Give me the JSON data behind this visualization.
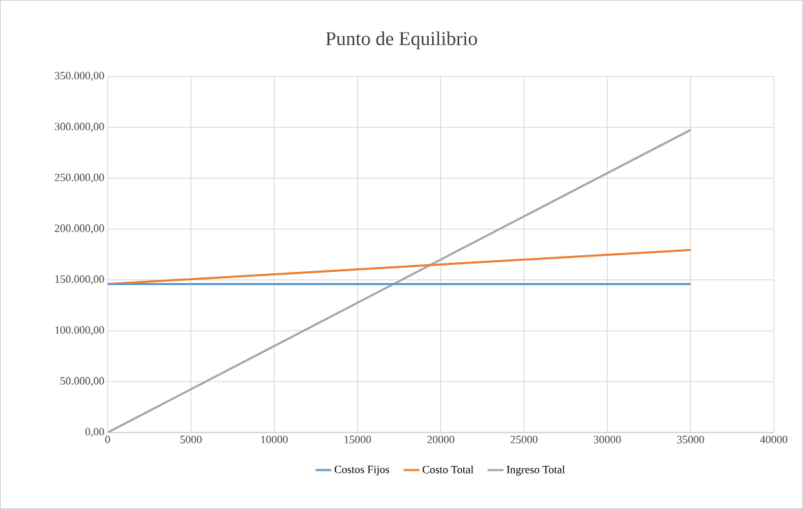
{
  "chart_data": {
    "type": "line",
    "title": "Punto de Equilibrio",
    "xlim": [
      0,
      40000
    ],
    "xticks": [
      0,
      5000,
      10000,
      15000,
      20000,
      25000,
      30000,
      35000,
      40000
    ],
    "ylim": [
      0,
      350000
    ],
    "yticks": [
      {
        "value": 0,
        "label": "0,00"
      },
      {
        "value": 50000,
        "label": "50.000,00"
      },
      {
        "value": 100000,
        "label": "100.000,00"
      },
      {
        "value": 150000,
        "label": "150.000,00"
      },
      {
        "value": 200000,
        "label": "200.000,00"
      },
      {
        "value": 250000,
        "label": "250.000,00"
      },
      {
        "value": 300000,
        "label": "300.000,00"
      },
      {
        "value": 350000,
        "label": "350.000,00"
      }
    ],
    "x": [
      0,
      35000
    ],
    "series": [
      {
        "name": "Costos Fijos",
        "color": "#5b9bd5",
        "values": [
          146000,
          146000
        ]
      },
      {
        "name": "Costo Total",
        "color": "#ed7d31",
        "values": [
          146000,
          179500
        ]
      },
      {
        "name": "Ingreso Total",
        "color": "#a5a5a5",
        "values": [
          0,
          297500
        ]
      }
    ],
    "grid": true,
    "legend": "bottom",
    "marker": "none",
    "line_style": "solid"
  }
}
